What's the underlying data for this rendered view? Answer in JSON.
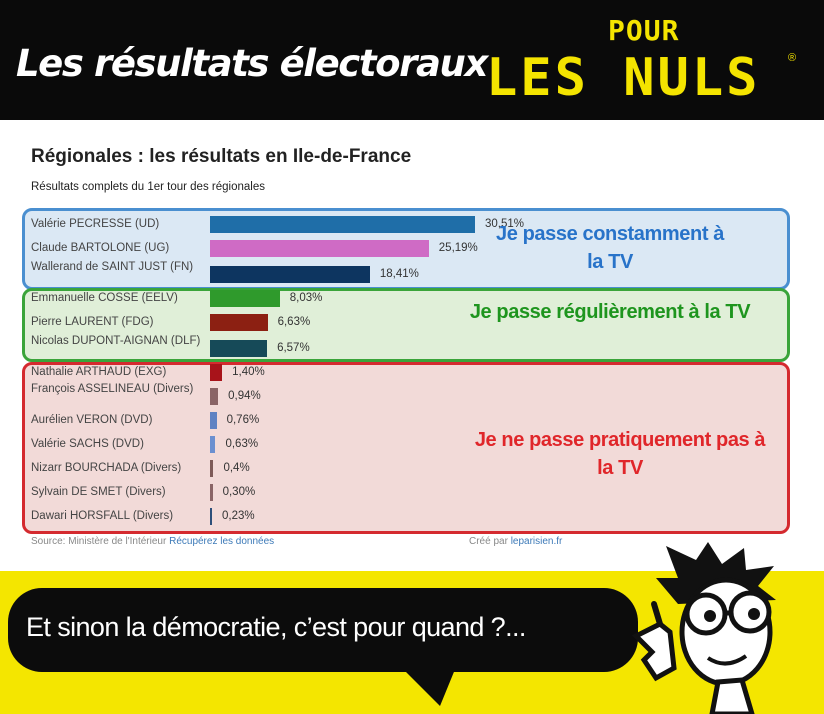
{
  "header": {
    "headline": "Les résultats électoraux",
    "logo_top": "POUR",
    "logo_main": "LES NULS",
    "logo_reg": "®"
  },
  "chart_data": {
    "type": "bar",
    "orientation": "horizontal",
    "title": "Régionales : les résultats en Ile-de-France",
    "subtitle": "Résultats complets du 1er tour des régionales",
    "categories": [
      "Valérie PECRESSE (UD)",
      "Claude BARTOLONE (UG)",
      "Wallerand de SAINT JUST (FN)",
      "Emmanuelle COSSE (EELV)",
      "Pierre LAURENT (FDG)",
      "Nicolas DUPONT-AIGNAN (DLF)",
      "Nathalie ARTHAUD (EXG)",
      "François ASSELINEAU (Divers)",
      "Aurélien VERON (DVD)",
      "Valérie SACHS (DVD)",
      "Nizarr BOURCHADA (Divers)",
      "Sylvain DE SMET (Divers)",
      "Dawari HORSFALL (Divers)"
    ],
    "values": [
      30.51,
      25.19,
      18.41,
      8.03,
      6.63,
      6.57,
      1.4,
      0.94,
      0.76,
      0.63,
      0.4,
      0.3,
      0.23
    ],
    "value_labels": [
      "30,51%",
      "25,19%",
      "18,41%",
      "8,03%",
      "6,63%",
      "6,57%",
      "1,40%",
      "0,94%",
      "0,76%",
      "0,63%",
      "0,4%",
      "0,30%",
      "0,23%"
    ],
    "colors": [
      "#1f6ea8",
      "#cf6bc5",
      "#0d3560",
      "#2f9a2c",
      "#8c2012",
      "#164a58",
      "#a8131a",
      "#8a6466",
      "#5f82c3",
      "#6b8fd0",
      "#7e5a58",
      "#8a6466",
      "#2d4f7a"
    ],
    "xlim": [
      0,
      30.51
    ],
    "grid": false
  },
  "annotations": [
    {
      "text": "Je passe constamment à la TV",
      "color": "#2873c9"
    },
    {
      "text": "Je passe régulièrement à la TV",
      "color": "#1e951e"
    },
    {
      "text": "Je ne passe pratiquement pas à la TV",
      "color": "#e0262a"
    }
  ],
  "groups": [
    {
      "border": "#4a8fd0",
      "fill": "#dbe8f4"
    },
    {
      "border": "#3aa43a",
      "fill": "#e0efd8"
    },
    {
      "border": "#d42a2f",
      "fill": "#f2dad8"
    }
  ],
  "footer": {
    "source_prefix": "Source: Ministère de l'Intérieur",
    "source_link": "Récupérez les données",
    "credit_prefix": "Créé par",
    "credit_link": "leparisien.fr"
  },
  "bubble": {
    "text": "Et sinon la démocratie, c’est pour quand ?..."
  }
}
